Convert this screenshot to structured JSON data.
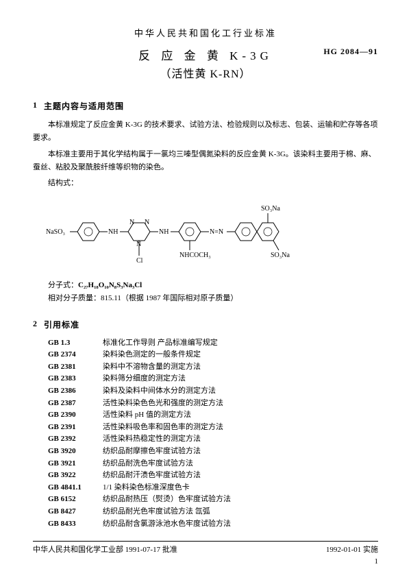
{
  "header": {
    "pretitle": "中华人民共和国化工行业标准",
    "title_cn": "反 应 金 黄 K-3G",
    "title_sub": "（活性黄 K-RN）",
    "std_code": "HG 2084—91"
  },
  "section1": {
    "num": "1",
    "title": "主题内容与适用范围",
    "p1": "本标准规定了反应金黄 K-3G 的技术要求、试验方法、检验规则以及标志、包装、运输和贮存等各项要求。",
    "p2": "本标准主要用于其化学结构属于一氯均三嗪型偶氮染料的反应金黄 K-3G。该染料主要用于棉、麻、蚕丝、粘胶及聚酰胺纤维等织物的染色。",
    "p3": "结构式："
  },
  "chem_labels": {
    "naso3_left": "NaSO₃",
    "nh_link": "NH",
    "n_ring": "N",
    "cl": "Cl",
    "azo": "N=N",
    "nhcoch3": "NHCOCH₃",
    "so3na": "SO₃Na"
  },
  "formula": {
    "line1_label": "分子式：",
    "line1_val": "C₂₇H₁₈O₁₀N₈S₃Na₃Cl",
    "line2_label": "相对分子质量：",
    "line2_val": "815.11",
    "line2_note": "（根据 1987 年国际相对原子质量）"
  },
  "section2": {
    "num": "2",
    "title": "引用标准",
    "refs": [
      {
        "code": "GB 1.3",
        "text": "标准化工作导则  产品标准编写规定"
      },
      {
        "code": "GB 2374",
        "text": "染料染色测定的一般条件规定"
      },
      {
        "code": "GB 2381",
        "text": "染料中不溶物含量的测定方法"
      },
      {
        "code": "GB 2383",
        "text": "染料筛分细度的测定方法"
      },
      {
        "code": "GB 2386",
        "text": "染料及染料中间体水分的测定方法"
      },
      {
        "code": "GB 2387",
        "text": "活性染料染色色光和强度的测定方法"
      },
      {
        "code": "GB 2390",
        "text": "活性染料 pH 值的测定方法"
      },
      {
        "code": "GB 2391",
        "text": "活性染料吸色率和固色率的测定方法"
      },
      {
        "code": "GB 2392",
        "text": "活性染料热稳定性的测定方法"
      },
      {
        "code": "GB 3920",
        "text": "纺织品耐摩擦色牢度试验方法"
      },
      {
        "code": "GB 3921",
        "text": "纺织品耐洗色牢度试验方法"
      },
      {
        "code": "GB 3922",
        "text": "纺织品耐汗渍色牢度试验方法"
      },
      {
        "code": "GB 4841.1",
        "text": "1/1 染料染色标准深度色卡"
      },
      {
        "code": "GB 6152",
        "text": "纺织品耐热压（熨烫）色牢度试验方法"
      },
      {
        "code": "GB 8427",
        "text": "纺织品耐光色牢度试验方法  氙弧"
      },
      {
        "code": "GB 8433",
        "text": "纺织品耐含氯游泳池水色牢度试验方法"
      }
    ]
  },
  "footer": {
    "left": "中华人民共和国化学工业部 1991-07-17 批准",
    "right": "1992-01-01 实施",
    "page": "1"
  },
  "colors": {
    "text": "#000000",
    "bg": "#ffffff"
  }
}
